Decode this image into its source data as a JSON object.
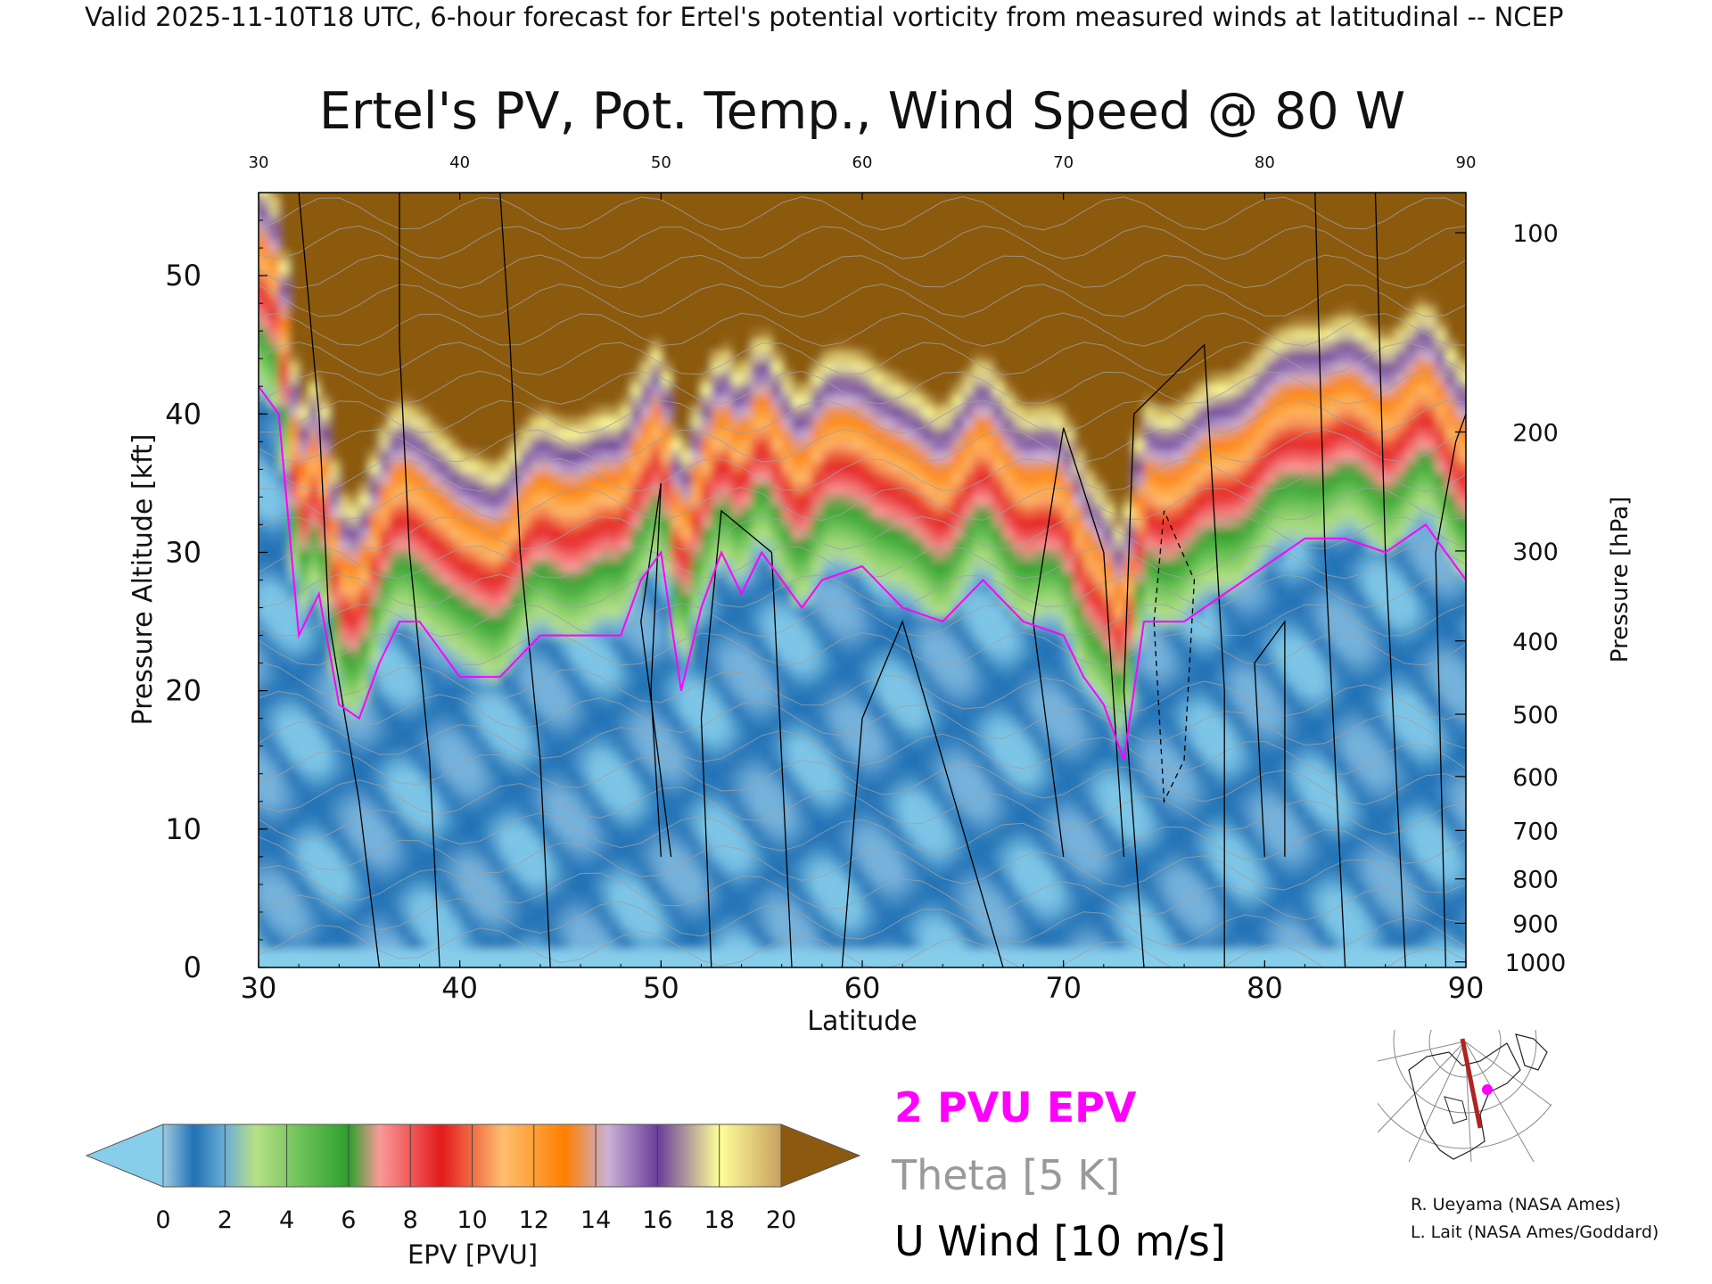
{
  "header": {
    "valid_line": "Valid 2025-11-10T18 UTC, 6-hour forecast for Ertel's potential vorticity from measured winds at latitudinal -- NCEP"
  },
  "chart_data": {
    "type": "heatmap",
    "title": "Ertel's PV, Pot. Temp., Wind Speed @ 80 W",
    "xlabel": "Latitude",
    "ylabel": "Pressure Altitude [kft]",
    "y2label": "Pressure [hPa]",
    "xlim": [
      30,
      90
    ],
    "ylim": [
      0,
      56
    ],
    "x_ticks": [
      30,
      40,
      50,
      60,
      70,
      80,
      90
    ],
    "x_tick_labels": [
      "30",
      "40",
      "50",
      "60",
      "70",
      "80",
      "90"
    ],
    "y_ticks": [
      0,
      10,
      20,
      30,
      40,
      50
    ],
    "y_tick_labels": [
      "0",
      "10",
      "20",
      "30",
      "40",
      "50"
    ],
    "pressure_ticks": [
      {
        "hpa": "100",
        "kft": 53.1
      },
      {
        "hpa": "200",
        "kft": 38.7
      },
      {
        "hpa": "300",
        "kft": 30.1
      },
      {
        "hpa": "400",
        "kft": 23.6
      },
      {
        "hpa": "500",
        "kft": 18.3
      },
      {
        "hpa": "600",
        "kft": 13.8
      },
      {
        "hpa": "700",
        "kft": 9.9
      },
      {
        "hpa": "800",
        "kft": 6.4
      },
      {
        "hpa": "900",
        "kft": 3.2
      },
      {
        "hpa": "1000",
        "kft": 0.4
      }
    ],
    "tropopause_2pvu_kft": {
      "lat": [
        30,
        31,
        32,
        33,
        34,
        35,
        36,
        37,
        38,
        40,
        42,
        44,
        46,
        48,
        49,
        50,
        51,
        52,
        53,
        54,
        55,
        56,
        57,
        58,
        60,
        62,
        64,
        66,
        68,
        70,
        71,
        72,
        73,
        74,
        75,
        76,
        78,
        80,
        82,
        84,
        86,
        88,
        90
      ],
      "kft": [
        42,
        40,
        24,
        27,
        19,
        18,
        22,
        25,
        25,
        21,
        21,
        24,
        24,
        24,
        28,
        30,
        20,
        26,
        30,
        27,
        30,
        28,
        26,
        28,
        29,
        26,
        25,
        28,
        25,
        24,
        21,
        19,
        15,
        25,
        25,
        25,
        27,
        29,
        31,
        31,
        30,
        32,
        28
      ]
    },
    "colorbar": {
      "label": "EPV [PVU]",
      "ticks": [
        "0",
        "2",
        "4",
        "6",
        "8",
        "10",
        "12",
        "14",
        "16",
        "18",
        "20"
      ],
      "colors": [
        "#2171b5",
        "#6baed6",
        "#b8e186",
        "#6fc35a",
        "#2c9f2c",
        "#fb9a99",
        "#e31a1c",
        "#fdbf6f",
        "#ff7f00",
        "#cab2d6",
        "#6a3d9a",
        "#ffff99",
        "#8c510a"
      ],
      "under_color": "#87ceeb",
      "over_color": "#8b5a10"
    },
    "legend": [
      {
        "label": "2 PVU EPV",
        "color": "#ff00ff"
      },
      {
        "label": "Theta [5 K]",
        "color": "#999999"
      },
      {
        "label": "U Wind [10 m/s]",
        "color": "#000000"
      }
    ],
    "inset_map": {
      "line_longitude": "80 W",
      "marker_color": "#ff00ff",
      "line_color": "#b22222"
    }
  },
  "credits": [
    "R. Ueyama (NASA Ames)",
    "L. Lait (NASA Ames/Goddard)"
  ]
}
